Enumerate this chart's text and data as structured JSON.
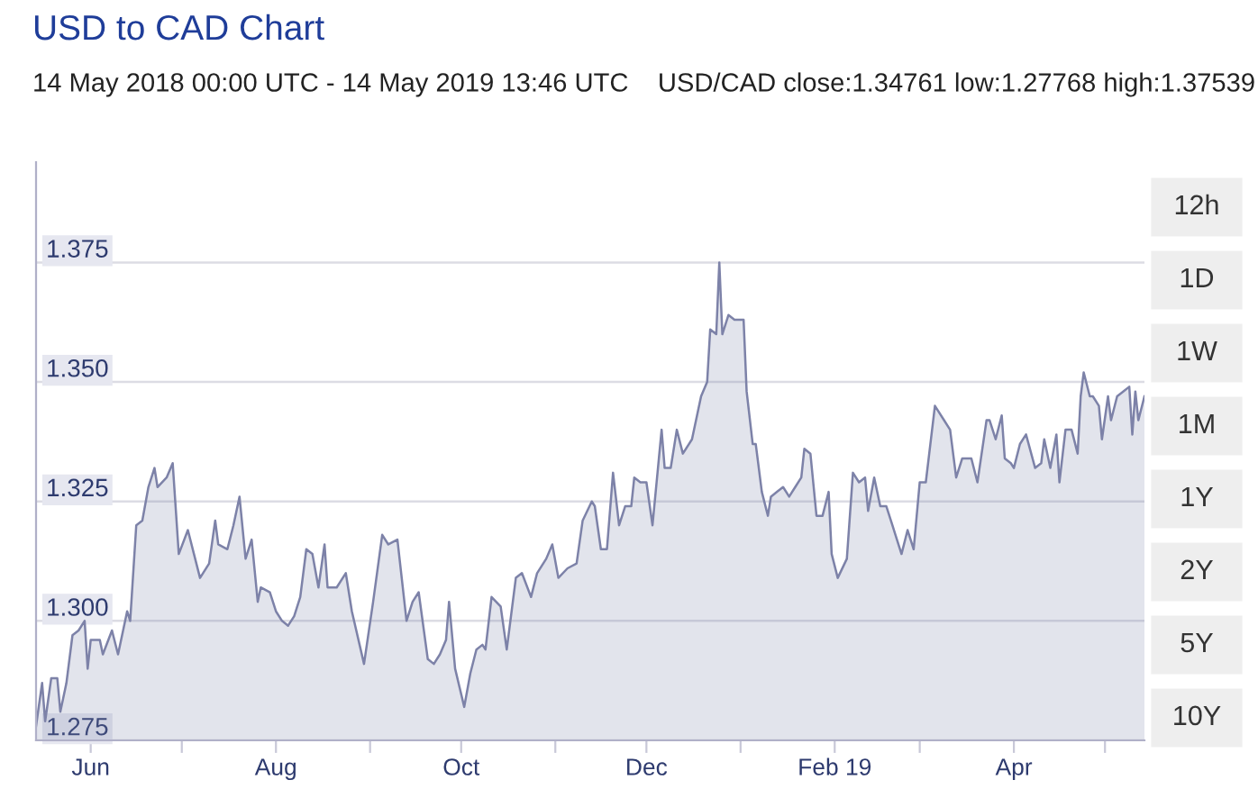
{
  "chart_data": {
    "type": "area",
    "title": "USD to CAD Chart",
    "subtitle": "14 May 2018 00:00 UTC - 14 May 2019 13:46 UTC    USD/CAD close:1.34761 low:1.27768 high:1.37539",
    "annotations": [
      "12h",
      "1D",
      "1W",
      "1M",
      "1Y",
      "2Y",
      "5Y",
      "10Y"
    ],
    "x": [
      "2018-05-14",
      "2018-05-16",
      "2018-05-17",
      "2018-05-19",
      "2018-05-21",
      "2018-05-22",
      "2018-05-24",
      "2018-05-26",
      "2018-05-28",
      "2018-05-30",
      "2018-05-31",
      "2018-06-01",
      "2018-06-04",
      "2018-06-05",
      "2018-06-08",
      "2018-06-10",
      "2018-06-13",
      "2018-06-14",
      "2018-06-16",
      "2018-06-18",
      "2018-06-20",
      "2018-06-22",
      "2018-06-23",
      "2018-06-26",
      "2018-06-28",
      "2018-06-30",
      "2018-07-03",
      "2018-07-05",
      "2018-07-07",
      "2018-07-10",
      "2018-07-12",
      "2018-07-13",
      "2018-07-16",
      "2018-07-18",
      "2018-07-20",
      "2018-07-22",
      "2018-07-24",
      "2018-07-26",
      "2018-07-27",
      "2018-07-30",
      "2018-08-01",
      "2018-08-03",
      "2018-08-05",
      "2018-08-07",
      "2018-08-09",
      "2018-08-11",
      "2018-08-13",
      "2018-08-15",
      "2018-08-17",
      "2018-08-18",
      "2018-08-21",
      "2018-08-24",
      "2018-08-26",
      "2018-08-30",
      "2018-09-02",
      "2018-09-05",
      "2018-09-07",
      "2018-09-10",
      "2018-09-13",
      "2018-09-15",
      "2018-09-17",
      "2018-09-20",
      "2018-09-22",
      "2018-09-24",
      "2018-09-26",
      "2018-09-27",
      "2018-09-29",
      "2018-10-02",
      "2018-10-04",
      "2018-10-06",
      "2018-10-08",
      "2018-10-09",
      "2018-10-11",
      "2018-10-14",
      "2018-10-16",
      "2018-10-19",
      "2018-10-21",
      "2018-10-24",
      "2018-10-26",
      "2018-10-29",
      "2018-10-31",
      "2018-11-02",
      "2018-11-05",
      "2018-11-08",
      "2018-11-10",
      "2018-11-13",
      "2018-11-14",
      "2018-11-16",
      "2018-11-18",
      "2018-11-20",
      "2018-11-22",
      "2018-11-24",
      "2018-11-26",
      "2018-11-27",
      "2018-11-29",
      "2018-12-01",
      "2018-12-03",
      "2018-12-06",
      "2018-12-07",
      "2018-12-09",
      "2018-12-11",
      "2018-12-13",
      "2018-12-16",
      "2018-12-19",
      "2018-12-21",
      "2018-12-22",
      "2018-12-24",
      "2018-12-25",
      "2018-12-26",
      "2018-12-28",
      "2018-12-30",
      "2019-01-02",
      "2019-01-03",
      "2019-01-05",
      "2019-01-06",
      "2019-01-08",
      "2019-01-10",
      "2019-01-11",
      "2019-01-13",
      "2019-01-15",
      "2019-01-17",
      "2019-01-19",
      "2019-01-21",
      "2019-01-22",
      "2019-01-24",
      "2019-01-26",
      "2019-01-28",
      "2019-01-30",
      "2019-01-31",
      "2019-02-02",
      "2019-02-05",
      "2019-02-07",
      "2019-02-09",
      "2019-02-11",
      "2019-02-12",
      "2019-02-14",
      "2019-02-16",
      "2019-02-18",
      "2019-02-20",
      "2019-02-21",
      "2019-02-23",
      "2019-02-25",
      "2019-02-27",
      "2019-03-01",
      "2019-03-03",
      "2019-03-06",
      "2019-03-09",
      "2019-03-11",
      "2019-03-13",
      "2019-03-15",
      "2019-03-18",
      "2019-03-20",
      "2019-03-23",
      "2019-03-24",
      "2019-03-26",
      "2019-03-28",
      "2019-03-29",
      "2019-03-31",
      "2019-04-01",
      "2019-04-03",
      "2019-04-05",
      "2019-04-08",
      "2019-04-10",
      "2019-04-11",
      "2019-04-13",
      "2019-04-15",
      "2019-04-16",
      "2019-04-18",
      "2019-04-20",
      "2019-04-22",
      "2019-04-23",
      "2019-04-24",
      "2019-04-26",
      "2019-04-27",
      "2019-04-29",
      "2019-04-30",
      "2019-05-02",
      "2019-05-03",
      "2019-05-05",
      "2019-05-07",
      "2019-05-09",
      "2019-05-10",
      "2019-05-11",
      "2019-05-12",
      "2019-05-14"
    ],
    "series": [
      {
        "color": "#7d82a8",
        "values": [
          1.278,
          1.287,
          1.279,
          1.288,
          1.288,
          1.281,
          1.287,
          1.297,
          1.298,
          1.3,
          1.29,
          1.296,
          1.296,
          1.293,
          1.298,
          1.293,
          1.302,
          1.3,
          1.32,
          1.321,
          1.328,
          1.332,
          1.328,
          1.33,
          1.333,
          1.314,
          1.319,
          1.314,
          1.309,
          1.312,
          1.321,
          1.316,
          1.315,
          1.32,
          1.326,
          1.313,
          1.317,
          1.304,
          1.307,
          1.306,
          1.302,
          1.3,
          1.299,
          1.301,
          1.305,
          1.315,
          1.314,
          1.307,
          1.316,
          1.307,
          1.307,
          1.31,
          1.302,
          1.291,
          1.304,
          1.318,
          1.316,
          1.317,
          1.3,
          1.304,
          1.306,
          1.292,
          1.291,
          1.293,
          1.296,
          1.304,
          1.29,
          1.282,
          1.289,
          1.294,
          1.295,
          1.294,
          1.305,
          1.303,
          1.294,
          1.309,
          1.31,
          1.305,
          1.31,
          1.313,
          1.316,
          1.309,
          1.311,
          1.312,
          1.321,
          1.325,
          1.324,
          1.315,
          1.315,
          1.331,
          1.32,
          1.324,
          1.324,
          1.33,
          1.329,
          1.329,
          1.32,
          1.34,
          1.332,
          1.332,
          1.34,
          1.335,
          1.338,
          1.347,
          1.35,
          1.361,
          1.36,
          1.375,
          1.36,
          1.364,
          1.363,
          1.363,
          1.348,
          1.337,
          1.337,
          1.327,
          1.322,
          1.326,
          1.327,
          1.328,
          1.326,
          1.328,
          1.33,
          1.336,
          1.335,
          1.322,
          1.322,
          1.327,
          1.314,
          1.309,
          1.313,
          1.331,
          1.329,
          1.33,
          1.323,
          1.33,
          1.324,
          1.324,
          1.32,
          1.318,
          1.314,
          1.319,
          1.315,
          1.329,
          1.329,
          1.345,
          1.342,
          1.34,
          1.33,
          1.334,
          1.334,
          1.329,
          1.342,
          1.342,
          1.338,
          1.343,
          1.334,
          1.333,
          1.332,
          1.337,
          1.339,
          1.332,
          1.333,
          1.338,
          1.332,
          1.339,
          1.329,
          1.34,
          1.34,
          1.335,
          1.347,
          1.352,
          1.347,
          1.347,
          1.345,
          1.338,
          1.347,
          1.342,
          1.347,
          1.348,
          1.349,
          1.339,
          1.348,
          1.342,
          1.347
        ]
      }
    ],
    "xlim": [
      "2018-05-14",
      "2019-05-14"
    ],
    "xticks": [
      {
        "value": "2018-06-01",
        "label": "Jun"
      },
      {
        "value": "2018-07-01",
        "label": null
      },
      {
        "value": "2018-08-01",
        "label": "Aug"
      },
      {
        "value": "2018-09-01",
        "label": null
      },
      {
        "value": "2018-10-01",
        "label": "Oct"
      },
      {
        "value": "2018-11-01",
        "label": null
      },
      {
        "value": "2018-12-01",
        "label": "Dec"
      },
      {
        "value": "2019-01-01",
        "label": null
      },
      {
        "value": "2019-02-01",
        "label": "Feb 19"
      },
      {
        "value": "2019-03-01",
        "label": null
      },
      {
        "value": "2019-04-01",
        "label": "Apr"
      },
      {
        "value": "2019-05-01",
        "label": null
      }
    ],
    "ylim": [
      1.275,
      1.396
    ],
    "yticks": [
      {
        "value": 1.275,
        "label": "1.275"
      },
      {
        "value": 1.3,
        "label": "1.300"
      },
      {
        "value": 1.325,
        "label": "1.325"
      },
      {
        "value": 1.35,
        "label": "1.350"
      },
      {
        "value": 1.375,
        "label": "1.375"
      }
    ],
    "grid": "y",
    "legend": false,
    "marker": "none",
    "line_style": "solid"
  }
}
